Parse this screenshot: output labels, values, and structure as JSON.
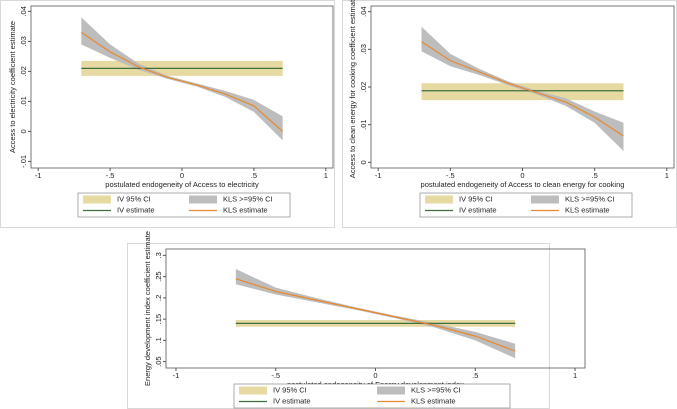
{
  "chart_data": [
    {
      "type": "line",
      "y_label": "Access to electricity coefficient estimate",
      "x_label": "postulated endogeneity of Access to electricity",
      "x": [
        -0.7,
        -0.5,
        -0.3,
        -0.1,
        0.1,
        0.3,
        0.5,
        0.7
      ],
      "xlim": [
        -1.05,
        1.05
      ],
      "xticks": [
        -1,
        {
          "value": -0.5,
          "label": "-.5"
        },
        0,
        {
          "value": 0.5,
          "label": ".5"
        },
        1
      ],
      "ylim": [
        -0.0122,
        0.0418
      ],
      "yticks": [
        {
          "value": -0.01,
          "label": "-.01"
        },
        0,
        {
          "value": 0.01,
          "label": ".01"
        },
        {
          "value": 0.02,
          "label": ".02"
        },
        {
          "value": 0.03,
          "label": ".03"
        },
        {
          "value": 0.04,
          "label": ".04"
        }
      ],
      "series": [
        {
          "name": "IV 95% CI",
          "color": "#e6d9a2",
          "lower": [
            0.0185,
            0.0185,
            0.0185,
            0.0185,
            0.0185,
            0.0185,
            0.0185,
            0.0185
          ],
          "upper": [
            0.0235,
            0.0235,
            0.0235,
            0.0235,
            0.0235,
            0.0235,
            0.0235,
            0.0235
          ]
        },
        {
          "name": "KLS >=95% CI",
          "color": "#bdbdbd",
          "lower": [
            0.029,
            0.0245,
            0.0205,
            0.0175,
            0.015,
            0.0115,
            0.0065,
            -0.003
          ],
          "upper": [
            0.038,
            0.029,
            0.0225,
            0.0185,
            0.016,
            0.0135,
            0.0105,
            0.005
          ]
        },
        {
          "name": "IV estimate",
          "color": "#3f6f3f",
          "values": [
            0.021,
            0.021,
            0.021,
            0.021,
            0.021,
            0.021,
            0.021,
            0.021
          ]
        },
        {
          "name": "KLS estimate",
          "color": "#e8892f",
          "values": [
            0.033,
            0.0265,
            0.0215,
            0.018,
            0.0155,
            0.0125,
            0.0085,
            0
          ]
        }
      ]
    },
    {
      "type": "line",
      "y_label": "Access to clean energy for cooking coefficient estimate",
      "x_label": "postulated endogeneity of Access to clean energy for cooking",
      "x": [
        -0.7,
        -0.5,
        -0.3,
        -0.1,
        0.1,
        0.3,
        0.5,
        0.7
      ],
      "xlim": [
        -1.05,
        1.05
      ],
      "xticks": [
        -1,
        {
          "value": -0.5,
          "label": "-.5"
        },
        0,
        {
          "value": 0.5,
          "label": ".5"
        },
        1
      ],
      "ylim": [
        -0.0015,
        0.0415
      ],
      "yticks": [
        0,
        {
          "value": 0.01,
          "label": ".01"
        },
        {
          "value": 0.02,
          "label": ".02"
        },
        {
          "value": 0.03,
          "label": ".03"
        },
        {
          "value": 0.04,
          "label": ".04"
        }
      ],
      "series": [
        {
          "name": "IV 95% CI",
          "color": "#e6d9a2",
          "lower": [
            0.0165,
            0.0165,
            0.0165,
            0.0165,
            0.0165,
            0.0165,
            0.0165,
            0.0165
          ],
          "upper": [
            0.021,
            0.021,
            0.021,
            0.021,
            0.021,
            0.021,
            0.021,
            0.021
          ]
        },
        {
          "name": "KLS >=95% CI",
          "color": "#bdbdbd",
          "lower": [
            0.0295,
            0.0255,
            0.0232,
            0.0205,
            0.018,
            0.015,
            0.0105,
            0.003
          ],
          "upper": [
            0.036,
            0.0288,
            0.0248,
            0.0215,
            0.019,
            0.017,
            0.0135,
            0.0105
          ]
        },
        {
          "name": "IV estimate",
          "color": "#3f6f3f",
          "values": [
            0.019,
            0.019,
            0.019,
            0.019,
            0.019,
            0.019,
            0.019,
            0.019
          ]
        },
        {
          "name": "KLS estimate",
          "color": "#e8892f",
          "values": [
            0.032,
            0.027,
            0.024,
            0.021,
            0.0185,
            0.016,
            0.012,
            0.007
          ]
        }
      ]
    },
    {
      "type": "line",
      "y_label": "Energy development index coefficient estimate",
      "x_label": "postulated endogeneity of Energy development index",
      "x": [
        -0.7,
        -0.5,
        -0.3,
        -0.1,
        0.1,
        0.3,
        0.5,
        0.7
      ],
      "xlim": [
        -1.05,
        1.05
      ],
      "xticks": [
        -1,
        {
          "value": -0.5,
          "label": "-.5"
        },
        0,
        {
          "value": 0.5,
          "label": ".5"
        },
        1
      ],
      "ylim": [
        0.035,
        0.315
      ],
      "yticks": [
        {
          "value": 0.05,
          "label": ".05"
        },
        {
          "value": 0.1,
          "label": ".1"
        },
        {
          "value": 0.15,
          "label": ".15"
        },
        {
          "value": 0.2,
          "label": ".2"
        },
        {
          "value": 0.25,
          "label": ".25"
        },
        {
          "value": 0.3,
          "label": ".3"
        }
      ],
      "series": [
        {
          "name": "IV 95% CI",
          "color": "#e6d9a2",
          "lower": [
            0.132,
            0.132,
            0.132,
            0.132,
            0.132,
            0.132,
            0.132,
            0.132
          ],
          "upper": [
            0.148,
            0.148,
            0.148,
            0.148,
            0.148,
            0.148,
            0.148,
            0.148
          ]
        },
        {
          "name": "KLS >=95% CI",
          "color": "#bdbdbd",
          "lower": [
            0.232,
            0.208,
            0.19,
            0.172,
            0.152,
            0.13,
            0.1,
            0.058
          ],
          "upper": [
            0.268,
            0.224,
            0.2,
            0.178,
            0.158,
            0.14,
            0.12,
            0.092
          ]
        },
        {
          "name": "IV estimate",
          "color": "#3f6f3f",
          "values": [
            0.14,
            0.14,
            0.14,
            0.14,
            0.14,
            0.14,
            0.14,
            0.14
          ]
        },
        {
          "name": "KLS estimate",
          "color": "#e8892f",
          "values": [
            0.245,
            0.215,
            0.195,
            0.175,
            0.155,
            0.135,
            0.11,
            0.075
          ]
        }
      ]
    }
  ]
}
